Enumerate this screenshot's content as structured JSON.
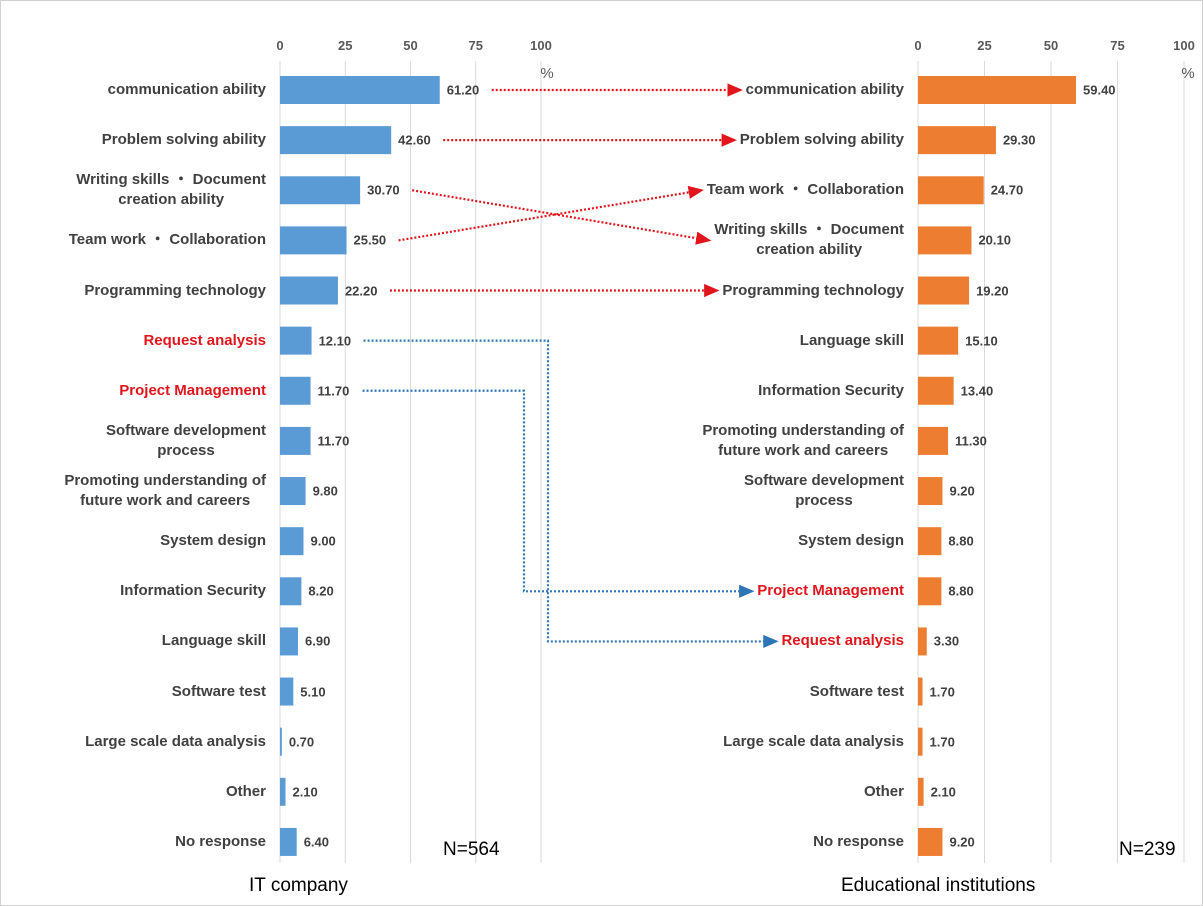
{
  "chart_data": [
    {
      "type": "bar",
      "orientation": "horizontal",
      "title": "IT company",
      "note": "N=564",
      "unit_label": "%",
      "categories": [
        "communication ability",
        "Problem solving ability",
        "Writing skills ・ Document\ncreation ability",
        "Team work ・ Collaboration",
        "Programming technology",
        "Request analysis",
        "Project Management",
        "Software development\nprocess",
        "Promoting understanding of\nfuture work and careers",
        "System design",
        "Information Security",
        "Language skill",
        "Software test",
        "Large scale data analysis",
        "Other",
        "No response"
      ],
      "values": [
        61.2,
        42.6,
        30.7,
        25.5,
        22.2,
        12.1,
        11.7,
        11.7,
        9.8,
        9.0,
        8.2,
        6.9,
        5.1,
        0.7,
        2.1,
        6.4
      ],
      "value_labels": [
        "61.20",
        "42.60",
        "30.70",
        "25.50",
        "22.20",
        "12.10",
        "11.70",
        "11.70",
        "9.80",
        "9.00",
        "8.20",
        "6.90",
        "5.10",
        "0.70",
        "2.10",
        "6.40"
      ],
      "label_colors": [
        "#404040",
        "#404040",
        "#404040",
        "#404040",
        "#404040",
        "#e0161c",
        "#e0161c",
        "#404040",
        "#404040",
        "#404040",
        "#404040",
        "#404040",
        "#404040",
        "#404040",
        "#404040",
        "#404040"
      ],
      "color": "#5b9bd5",
      "xlim": [
        0,
        100
      ],
      "xticks": [
        0,
        25,
        50,
        75,
        100
      ],
      "grid": true
    },
    {
      "type": "bar",
      "orientation": "horizontal",
      "title": "Educational institutions",
      "note": "N=239",
      "unit_label": "%",
      "categories": [
        "communication ability",
        "Problem solving ability",
        "Team work ・ Collaboration",
        "Writing skills ・ Document\ncreation ability",
        "Programming technology",
        "Language skill",
        "Information Security",
        "Promoting understanding of\nfuture work and careers",
        "Software development\nprocess",
        "System design",
        "Project Management",
        "Request analysis",
        "Software test",
        "Large scale data analysis",
        "Other",
        "No response"
      ],
      "values": [
        59.4,
        29.3,
        24.7,
        20.1,
        19.2,
        15.1,
        13.4,
        11.3,
        9.2,
        8.8,
        8.8,
        3.3,
        1.7,
        1.7,
        2.1,
        9.2
      ],
      "value_labels": [
        "59.40",
        "29.30",
        "24.70",
        "20.10",
        "19.20",
        "15.10",
        "13.40",
        "11.30",
        "9.20",
        "8.80",
        "8.80",
        "3.30",
        "1.70",
        "1.70",
        "2.10",
        "9.20"
      ],
      "label_colors": [
        "#404040",
        "#404040",
        "#404040",
        "#404040",
        "#404040",
        "#404040",
        "#404040",
        "#404040",
        "#404040",
        "#404040",
        "#e0161c",
        "#e0161c",
        "#404040",
        "#404040",
        "#404040",
        "#404040"
      ],
      "color": "#ed7d31",
      "xlim": [
        0,
        100
      ],
      "xticks": [
        0,
        25,
        50,
        75,
        100
      ],
      "grid": true
    }
  ]
}
